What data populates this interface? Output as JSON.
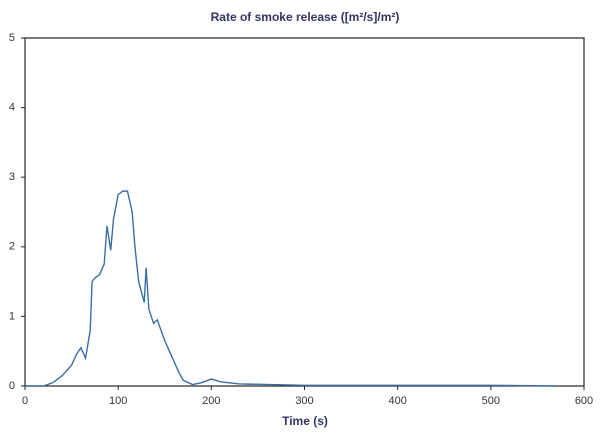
{
  "chart_data": {
    "type": "line",
    "title": "Rate of smoke release ([m²/s]/m²)",
    "x_label": "Time (s)",
    "x": [
      0,
      20,
      30,
      40,
      50,
      55,
      60,
      65,
      70,
      72,
      75,
      80,
      85,
      88,
      92,
      95,
      100,
      105,
      110,
      115,
      118,
      122,
      128,
      130,
      133,
      138,
      142,
      146,
      150,
      155,
      160,
      165,
      170,
      180,
      190,
      200,
      210,
      230,
      300,
      400,
      500,
      570
    ],
    "values": [
      0,
      0,
      0.05,
      0.15,
      0.3,
      0.45,
      0.55,
      0.4,
      0.8,
      1.5,
      1.55,
      1.6,
      1.75,
      2.3,
      1.95,
      2.4,
      2.75,
      2.8,
      2.8,
      2.5,
      2.0,
      1.5,
      1.2,
      1.7,
      1.1,
      0.9,
      0.95,
      0.8,
      0.65,
      0.5,
      0.35,
      0.2,
      0.08,
      0.02,
      0.05,
      0.1,
      0.06,
      0.03,
      0.01,
      0.01,
      0.01,
      0
    ],
    "color": "#3a6ea5",
    "xlim": [
      0,
      600
    ],
    "xticks": [
      0,
      100,
      200,
      300,
      400,
      500,
      600
    ],
    "ylim": [
      0,
      5
    ],
    "yticks": [
      0,
      1,
      2,
      3,
      4,
      5
    ]
  }
}
